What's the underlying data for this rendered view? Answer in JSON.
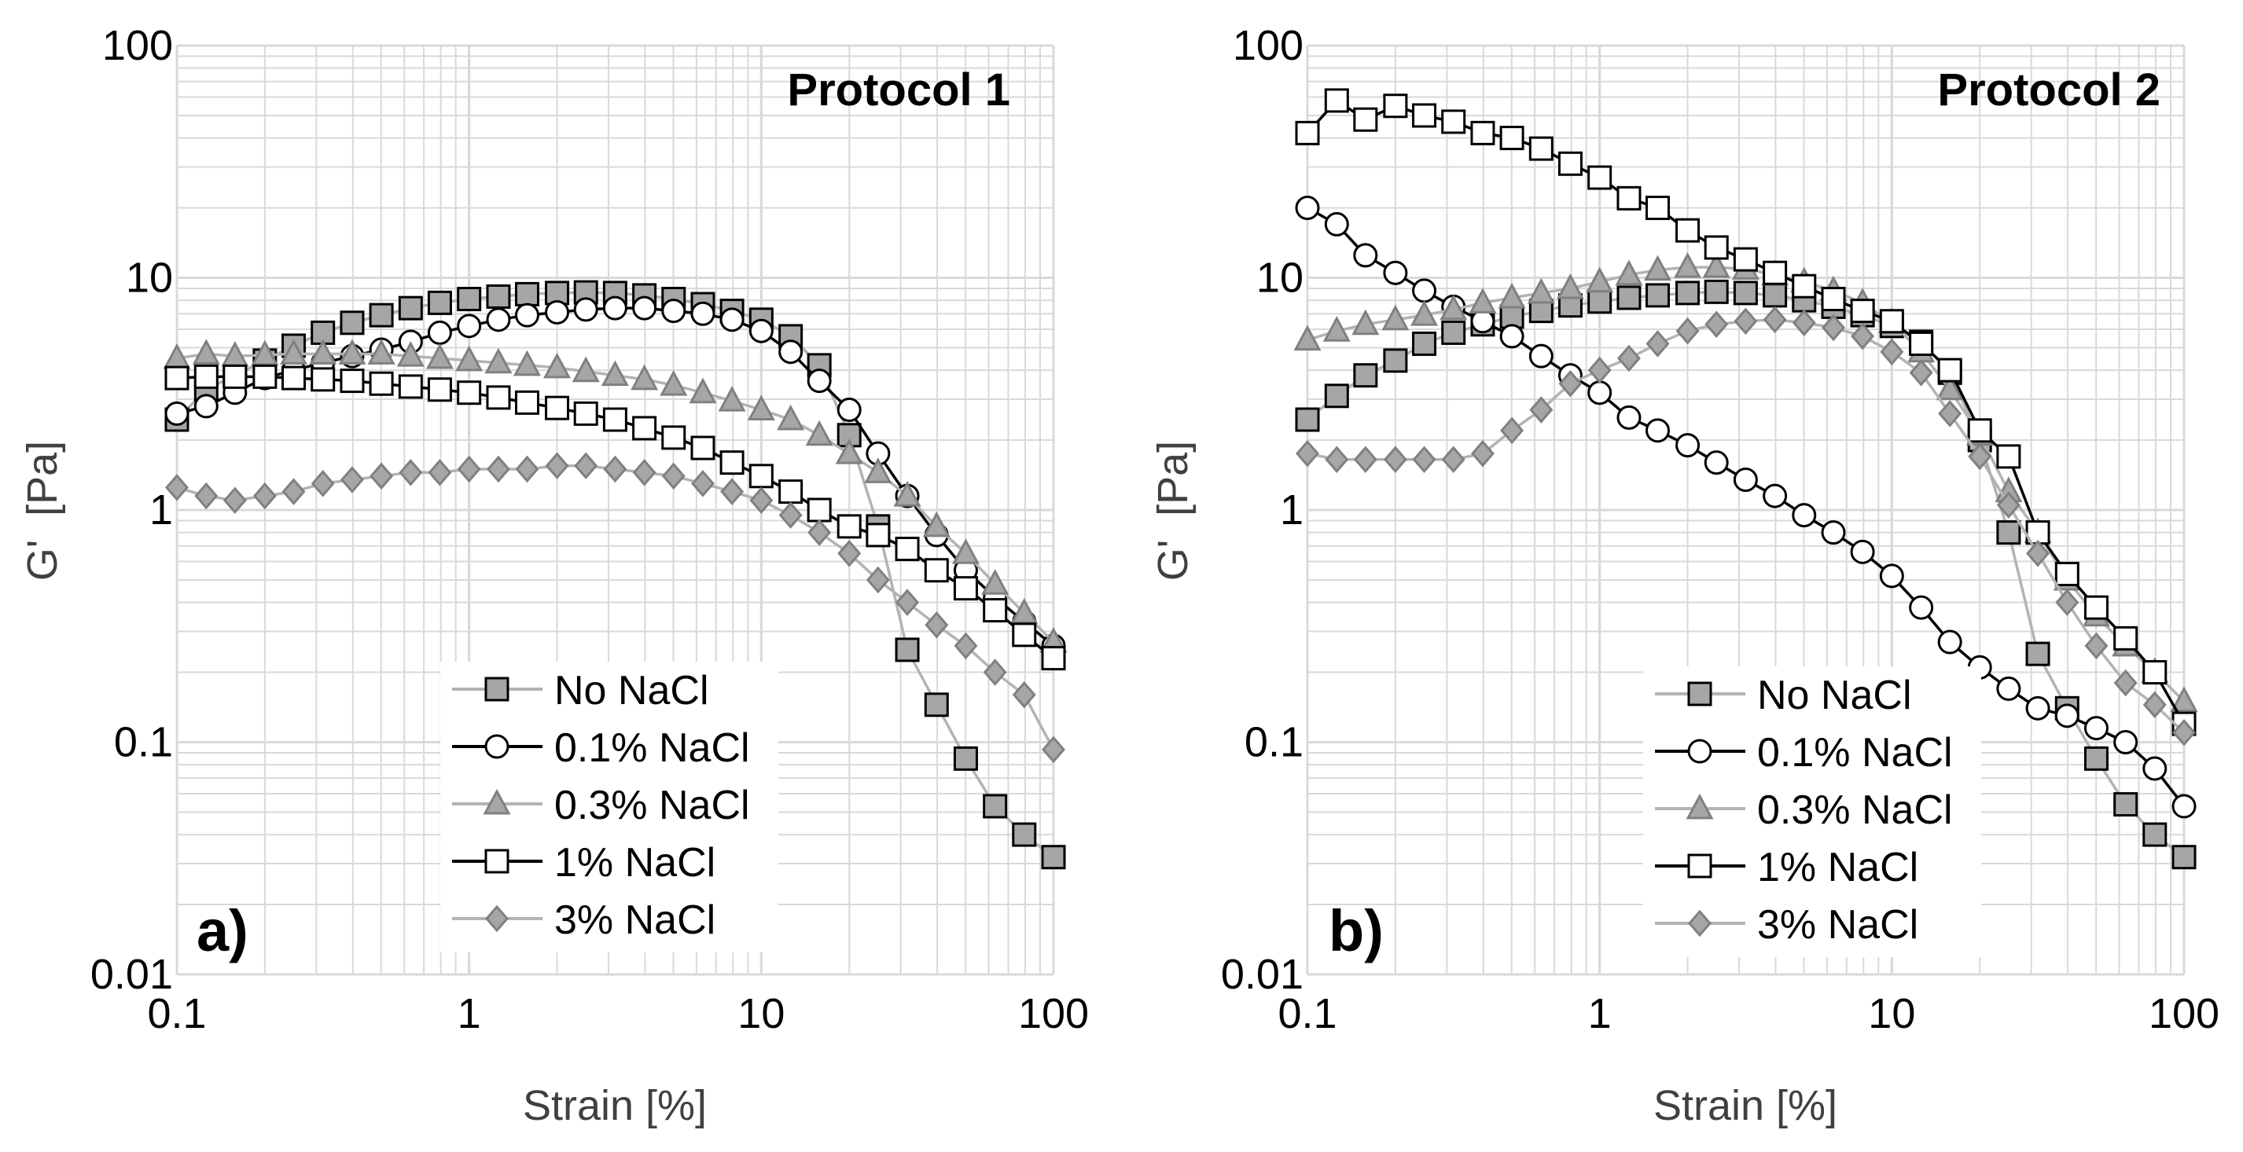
{
  "colors": {
    "marker_gray": "#a6a6a6",
    "marker_dark": "#808080",
    "line_gray": "#b3b3b3",
    "line_black": "#000000",
    "grid": "#d9d9d9",
    "open_fill": "#ffffff"
  },
  "chart_data": [
    {
      "type": "line",
      "scale": "log-log",
      "title": "Protocol 1",
      "panel_label": "a)",
      "xlabel": "Strain [%]",
      "ylabel": "G'  [Pa]",
      "xlim": [
        0.1,
        100
      ],
      "ylim": [
        0.01,
        100
      ],
      "x_ticks": [
        {
          "v": 0.1,
          "label": "0.1"
        },
        {
          "v": 1,
          "label": "1"
        },
        {
          "v": 10,
          "label": "10"
        },
        {
          "v": 100,
          "label": "100"
        }
      ],
      "y_ticks": [
        {
          "v": 0.01,
          "label": "0.01"
        },
        {
          "v": 0.1,
          "label": "0.1"
        },
        {
          "v": 1,
          "label": "1"
        },
        {
          "v": 10,
          "label": "10"
        },
        {
          "v": 100,
          "label": "100"
        }
      ],
      "legend_position": "bottom-center",
      "series": [
        {
          "name": "No NaCl",
          "marker": "square-filled",
          "x": [
            0.1,
            0.126,
            0.158,
            0.2,
            0.251,
            0.316,
            0.398,
            0.501,
            0.631,
            0.794,
            1,
            1.26,
            1.58,
            2,
            2.51,
            3.16,
            3.98,
            5.01,
            6.31,
            7.94,
            10,
            12.6,
            15.8,
            20,
            25.1,
            31.6,
            39.8,
            50.1,
            63.1,
            79.4,
            100
          ],
          "values": [
            2.45,
            3.3,
            3.8,
            4.4,
            5.1,
            5.8,
            6.4,
            6.9,
            7.4,
            7.8,
            8.1,
            8.3,
            8.5,
            8.6,
            8.65,
            8.6,
            8.4,
            8.1,
            7.7,
            7.2,
            6.6,
            5.6,
            4.2,
            2.1,
            0.85,
            0.25,
            0.145,
            0.085,
            0.053,
            0.04,
            0.032
          ]
        },
        {
          "name": "0.1% NaCl",
          "marker": "circle-open",
          "x": [
            0.1,
            0.126,
            0.158,
            0.2,
            0.251,
            0.316,
            0.398,
            0.501,
            0.631,
            0.794,
            1,
            1.26,
            1.58,
            2,
            2.51,
            3.16,
            3.98,
            5.01,
            6.31,
            7.94,
            10,
            12.6,
            15.8,
            20,
            25.1,
            31.6,
            39.8,
            50.1,
            63.1,
            79.4,
            100
          ],
          "values": [
            2.6,
            2.8,
            3.2,
            3.7,
            4.0,
            4.3,
            4.6,
            4.9,
            5.3,
            5.8,
            6.2,
            6.6,
            6.9,
            7.1,
            7.3,
            7.4,
            7.4,
            7.2,
            7.0,
            6.6,
            5.9,
            4.8,
            3.6,
            2.7,
            1.75,
            1.15,
            0.78,
            0.55,
            0.42,
            0.33,
            0.26
          ]
        },
        {
          "name": "0.3% NaCl",
          "marker": "triangle-filled",
          "x": [
            0.1,
            0.126,
            0.158,
            0.2,
            0.251,
            0.316,
            0.398,
            0.501,
            0.631,
            0.794,
            1,
            1.26,
            1.58,
            2,
            2.51,
            3.16,
            3.98,
            5.01,
            6.31,
            7.94,
            10,
            12.6,
            15.8,
            20,
            25.1,
            31.6,
            39.8,
            50.1,
            63.1,
            79.4,
            100
          ],
          "values": [
            4.5,
            4.7,
            4.6,
            4.65,
            4.7,
            4.7,
            4.7,
            4.7,
            4.6,
            4.5,
            4.4,
            4.3,
            4.2,
            4.1,
            3.95,
            3.8,
            3.65,
            3.45,
            3.2,
            2.95,
            2.7,
            2.45,
            2.1,
            1.75,
            1.45,
            1.15,
            0.85,
            0.65,
            0.48,
            0.36,
            0.27
          ]
        },
        {
          "name": "1% NaCl",
          "marker": "square-open",
          "x": [
            0.1,
            0.126,
            0.158,
            0.2,
            0.251,
            0.316,
            0.398,
            0.501,
            0.631,
            0.794,
            1,
            1.26,
            1.58,
            2,
            2.51,
            3.16,
            3.98,
            5.01,
            6.31,
            7.94,
            10,
            12.6,
            15.8,
            20,
            25.1,
            31.6,
            39.8,
            50.1,
            63.1,
            79.4,
            100
          ],
          "values": [
            3.7,
            3.75,
            3.75,
            3.75,
            3.7,
            3.65,
            3.6,
            3.5,
            3.4,
            3.3,
            3.2,
            3.05,
            2.9,
            2.75,
            2.6,
            2.45,
            2.25,
            2.05,
            1.85,
            1.6,
            1.4,
            1.2,
            1.0,
            0.85,
            0.78,
            0.68,
            0.55,
            0.46,
            0.37,
            0.29,
            0.23
          ]
        },
        {
          "name": "3% NaCl",
          "marker": "diamond-filled",
          "x": [
            0.1,
            0.126,
            0.158,
            0.2,
            0.251,
            0.316,
            0.398,
            0.501,
            0.631,
            0.794,
            1,
            1.26,
            1.58,
            2,
            2.51,
            3.16,
            3.98,
            5.01,
            6.31,
            7.94,
            10,
            12.6,
            15.8,
            20,
            25.1,
            31.6,
            39.8,
            50.1,
            63.1,
            79.4,
            100
          ],
          "values": [
            1.25,
            1.15,
            1.1,
            1.15,
            1.2,
            1.3,
            1.35,
            1.4,
            1.45,
            1.45,
            1.5,
            1.5,
            1.5,
            1.55,
            1.55,
            1.5,
            1.45,
            1.4,
            1.3,
            1.2,
            1.1,
            0.95,
            0.8,
            0.65,
            0.5,
            0.4,
            0.32,
            0.26,
            0.2,
            0.16,
            0.093
          ]
        }
      ]
    },
    {
      "type": "line",
      "scale": "log-log",
      "title": "Protocol 2",
      "panel_label": "b)",
      "xlabel": "Strain [%]",
      "ylabel": "G'  [Pa]",
      "xlim": [
        0.1,
        100
      ],
      "ylim": [
        0.01,
        100
      ],
      "x_ticks": [
        {
          "v": 0.1,
          "label": "0.1"
        },
        {
          "v": 1,
          "label": "1"
        },
        {
          "v": 10,
          "label": "10"
        },
        {
          "v": 100,
          "label": "100"
        }
      ],
      "y_ticks": [
        {
          "v": 0.01,
          "label": "0.01"
        },
        {
          "v": 0.1,
          "label": "0.1"
        },
        {
          "v": 1,
          "label": "1"
        },
        {
          "v": 10,
          "label": "10"
        },
        {
          "v": 100,
          "label": "100"
        }
      ],
      "legend_position": "bottom-center",
      "series": [
        {
          "name": "No NaCl",
          "marker": "square-filled",
          "x": [
            0.1,
            0.126,
            0.158,
            0.2,
            0.251,
            0.316,
            0.398,
            0.501,
            0.631,
            0.794,
            1,
            1.26,
            1.58,
            2,
            2.51,
            3.16,
            3.98,
            5.01,
            6.31,
            7.94,
            10,
            12.6,
            15.8,
            20,
            25.1,
            31.6,
            39.8,
            50.1,
            63.1,
            79.4,
            100
          ],
          "values": [
            2.45,
            3.1,
            3.8,
            4.4,
            5.2,
            5.8,
            6.3,
            6.8,
            7.2,
            7.6,
            7.9,
            8.2,
            8.4,
            8.6,
            8.7,
            8.6,
            8.4,
            8.0,
            7.5,
            6.9,
            6.2,
            5.3,
            3.9,
            2.0,
            0.8,
            0.24,
            0.14,
            0.085,
            0.054,
            0.04,
            0.032
          ]
        },
        {
          "name": "0.1% NaCl",
          "marker": "circle-open",
          "x": [
            0.1,
            0.126,
            0.158,
            0.2,
            0.251,
            0.316,
            0.398,
            0.501,
            0.631,
            0.794,
            1,
            1.26,
            1.58,
            2,
            2.51,
            3.16,
            3.98,
            5.01,
            6.31,
            7.94,
            10,
            12.6,
            15.8,
            20,
            25.1,
            31.6,
            39.8,
            50.1,
            63.1,
            79.4,
            100
          ],
          "values": [
            20,
            17,
            12.5,
            10.5,
            8.8,
            7.5,
            6.5,
            5.6,
            4.6,
            3.8,
            3.2,
            2.5,
            2.2,
            1.9,
            1.6,
            1.35,
            1.15,
            0.95,
            0.8,
            0.66,
            0.52,
            0.38,
            0.27,
            0.21,
            0.17,
            0.14,
            0.13,
            0.115,
            0.1,
            0.077,
            0.053
          ]
        },
        {
          "name": "0.3% NaCl",
          "marker": "triangle-filled",
          "x": [
            0.1,
            0.126,
            0.158,
            0.2,
            0.251,
            0.316,
            0.398,
            0.501,
            0.631,
            0.794,
            1,
            1.26,
            1.58,
            2,
            2.51,
            3.16,
            3.98,
            5.01,
            6.31,
            7.94,
            10,
            12.6,
            15.8,
            20,
            25.1,
            31.6,
            39.8,
            50.1,
            63.1,
            79.4,
            100
          ],
          "values": [
            5.4,
            5.9,
            6.3,
            6.6,
            6.9,
            7.3,
            7.8,
            8.2,
            8.6,
            9.0,
            9.6,
            10.3,
            10.8,
            11.1,
            11.1,
            10.9,
            10.3,
            9.6,
            8.8,
            7.8,
            6.4,
            4.8,
            3.3,
            2.1,
            1.2,
            0.8,
            0.5,
            0.35,
            0.26,
            0.2,
            0.15
          ]
        },
        {
          "name": "1% NaCl",
          "marker": "square-open",
          "x": [
            0.1,
            0.126,
            0.158,
            0.2,
            0.251,
            0.316,
            0.398,
            0.501,
            0.631,
            0.794,
            1,
            1.26,
            1.58,
            2,
            2.51,
            3.16,
            3.98,
            5.01,
            6.31,
            7.94,
            10,
            12.6,
            15.8,
            20,
            25.1,
            31.6,
            39.8,
            50.1,
            63.1,
            79.4,
            100
          ],
          "values": [
            42,
            58,
            48,
            55,
            50,
            47,
            42,
            40,
            36,
            31,
            27,
            22,
            20,
            16,
            13.5,
            12,
            10.5,
            9.2,
            8.1,
            7.2,
            6.5,
            5.2,
            4.0,
            2.2,
            1.7,
            0.8,
            0.53,
            0.38,
            0.28,
            0.2,
            0.12
          ]
        },
        {
          "name": "3% NaCl",
          "marker": "diamond-filled",
          "x": [
            0.1,
            0.126,
            0.158,
            0.2,
            0.251,
            0.316,
            0.398,
            0.501,
            0.631,
            0.794,
            1,
            1.26,
            1.58,
            2,
            2.51,
            3.16,
            3.98,
            5.01,
            6.31,
            7.94,
            10,
            12.6,
            15.8,
            20,
            25.1,
            31.6,
            39.8,
            50.1,
            63.1,
            79.4,
            100
          ],
          "values": [
            1.75,
            1.65,
            1.65,
            1.65,
            1.65,
            1.65,
            1.75,
            2.2,
            2.7,
            3.5,
            4.0,
            4.5,
            5.2,
            5.9,
            6.3,
            6.5,
            6.6,
            6.4,
            6.1,
            5.6,
            4.8,
            3.9,
            2.6,
            1.7,
            1.05,
            0.65,
            0.4,
            0.26,
            0.18,
            0.145,
            0.11
          ]
        }
      ]
    }
  ]
}
